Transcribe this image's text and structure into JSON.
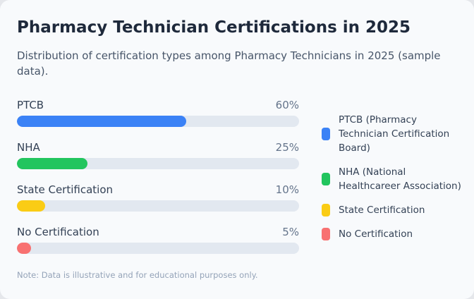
{
  "title": "Pharmacy Technician Certifications in 2025",
  "subtitle": "Distribution of certification types among Pharmacy Technicians in 2025 (sample data).",
  "note": "Note: Data is illustrative and for educational purposes only.",
  "chart_data": {
    "type": "bar",
    "orientation": "horizontal",
    "title": "Pharmacy Technician Certifications in 2025",
    "subtitle": "Distribution of certification types among Pharmacy Technicians in 2025 (sample data).",
    "categories": [
      "PTCB",
      "NHA",
      "State Certification",
      "No Certification"
    ],
    "values": [
      60,
      25,
      10,
      5
    ],
    "value_labels": [
      "60%",
      "25%",
      "10%",
      "5%"
    ],
    "unit": "%",
    "xlim": [
      0,
      100
    ],
    "colors": [
      "#3b82f6",
      "#22c55e",
      "#facc15",
      "#f87171"
    ],
    "track_color": "#e2e8f0",
    "legend_position": "right",
    "legend": [
      {
        "label": "PTCB (Pharmacy Technician Certification Board)",
        "color": "#3b82f6"
      },
      {
        "label": "NHA (National Healthcareer Association)",
        "color": "#22c55e"
      },
      {
        "label": "State Certification",
        "color": "#facc15"
      },
      {
        "label": "No Certification",
        "color": "#f87171"
      }
    ],
    "grid": false
  }
}
